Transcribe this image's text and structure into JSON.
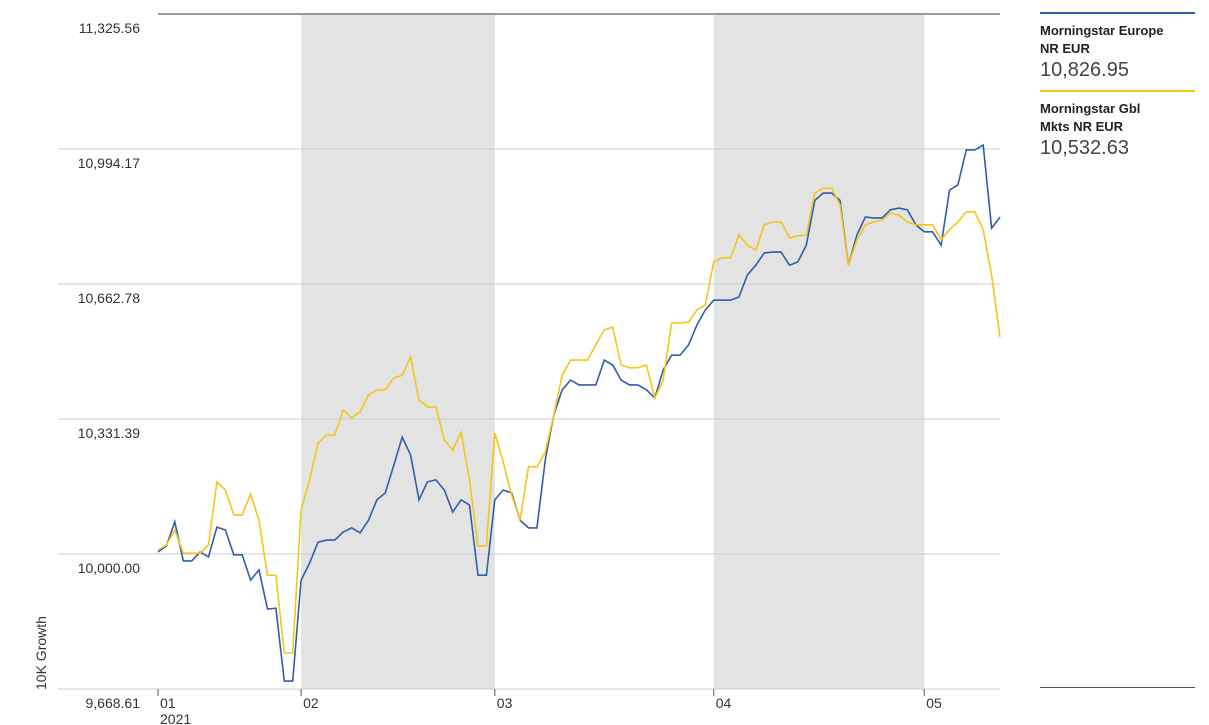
{
  "chart_data": {
    "type": "line",
    "y_label": "10K Growth",
    "year_label": "2021",
    "categories": [
      "01",
      null,
      null,
      null,
      null,
      null,
      null,
      null,
      null,
      null,
      null,
      null,
      null,
      null,
      null,
      null,
      null,
      "02",
      null,
      null,
      null,
      null,
      null,
      null,
      null,
      null,
      null,
      null,
      null,
      null,
      null,
      null,
      null,
      null,
      null,
      null,
      null,
      null,
      null,
      null,
      "03",
      null,
      null,
      null,
      null,
      null,
      null,
      null,
      null,
      null,
      null,
      null,
      null,
      null,
      null,
      null,
      null,
      null,
      null,
      null,
      null,
      null,
      null,
      null,
      null,
      null,
      "04",
      null,
      null,
      null,
      null,
      null,
      null,
      null,
      null,
      null,
      null,
      null,
      null,
      null,
      null,
      null,
      null,
      null,
      null,
      null,
      null,
      null,
      null,
      null,
      null,
      "05",
      null,
      null,
      null,
      null,
      null,
      null,
      null,
      null,
      null
    ],
    "series": [
      {
        "name": "Morningstar Europe NR EUR",
        "latest_label": "10,826.95",
        "color": "#2f5fa8",
        "values": [
          10005,
          10020,
          10079,
          9983,
          9983,
          10005,
          9993,
          10066,
          10059,
          9998,
          9998,
          9936,
          9961,
          9865,
          9867,
          9688,
          9688,
          9936,
          9978,
          10029,
          10034,
          10034,
          10054,
          10064,
          10052,
          10083,
          10133,
          10150,
          10218,
          10287,
          10243,
          10133,
          10177,
          10182,
          10157,
          10103,
          10133,
          10120,
          9948,
          9948,
          10133,
          10157,
          10150,
          10083,
          10064,
          10064,
          10231,
          10341,
          10403,
          10427,
          10415,
          10415,
          10415,
          10476,
          10464,
          10427,
          10415,
          10415,
          10403,
          10383,
          10452,
          10488,
          10488,
          10513,
          10562,
          10599,
          10623,
          10623,
          10623,
          10631,
          10685,
          10709,
          10739,
          10741,
          10741,
          10709,
          10717,
          10758,
          10868,
          10886,
          10886,
          10868,
          10709,
          10783,
          10827,
          10825,
          10825,
          10845,
          10849,
          10845,
          10808,
          10791,
          10791,
          10758,
          10893,
          10906,
          10992,
          10992,
          11004,
          10800,
          10826.95
        ]
      },
      {
        "name": "Morningstar Gbl Mkts NR EUR",
        "latest_label": "10,532.63",
        "color": "#f5c518",
        "values": [
          10010,
          10022,
          10059,
          10002,
          10002,
          10002,
          10022,
          10177,
          10157,
          10096,
          10096,
          10147,
          10083,
          9948,
          9948,
          9757,
          9757,
          10108,
          10182,
          10272,
          10292,
          10292,
          10353,
          10334,
          10349,
          10390,
          10403,
          10403,
          10432,
          10439,
          10484,
          10378,
          10361,
          10361,
          10280,
          10255,
          10299,
          10182,
          10020,
          10020,
          10297,
          10226,
          10145,
          10083,
          10214,
          10214,
          10250,
          10341,
          10439,
          10476,
          10476,
          10476,
          10513,
          10550,
          10557,
          10464,
          10457,
          10457,
          10464,
          10383,
          10427,
          10567,
          10567,
          10569,
          10599,
          10611,
          10717,
          10727,
          10727,
          10783,
          10758,
          10746,
          10808,
          10815,
          10815,
          10776,
          10781,
          10783,
          10886,
          10898,
          10898,
          10857,
          10709,
          10771,
          10808,
          10815,
          10820,
          10837,
          10832,
          10815,
          10808,
          10808,
          10808,
          10771,
          10796,
          10815,
          10840,
          10840,
          10796,
          10685,
          10532.63
        ]
      }
    ],
    "ylim": [
      9668.61,
      11325.56
    ],
    "yticks": [
      {
        "value": 9668.61,
        "label": "9,668.61"
      },
      {
        "value": 10000,
        "label": "10,000.00"
      },
      {
        "value": 10331.39,
        "label": "10,331.39"
      },
      {
        "value": 10662.78,
        "label": "10,662.78"
      },
      {
        "value": 10994.17,
        "label": "10,994.17"
      },
      {
        "value": 11325.56,
        "label": "11,325.56"
      }
    ],
    "grid": true,
    "shade_alternate_months": true,
    "band_color": "#e3e3e3"
  }
}
